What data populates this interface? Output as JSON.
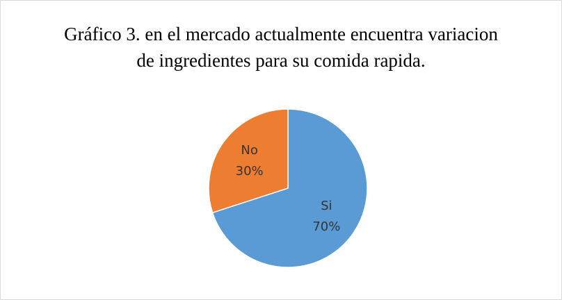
{
  "chart_data": {
    "type": "pie",
    "title": "Gráfico 3. en el mercado actualmente encuentra variacion de ingredientes para su comida rapida.",
    "categories": [
      "Si",
      "No"
    ],
    "values": [
      70,
      30
    ],
    "value_labels": [
      "70%",
      "30%"
    ],
    "colors": [
      "#5b9bd5",
      "#ed7d31"
    ]
  }
}
